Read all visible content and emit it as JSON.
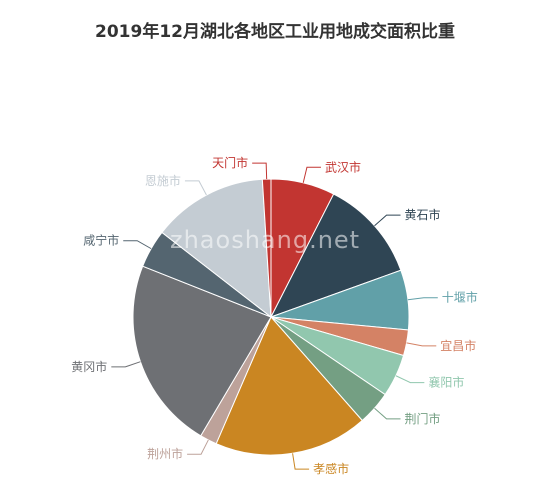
{
  "chart_data": {
    "type": "pie",
    "title": "2019年12月湖北各地区工业用地成交面积比重",
    "watermark": "zhaoshang.net",
    "slices": [
      {
        "name": "武汉市",
        "value": 7.5,
        "color": "#c23531"
      },
      {
        "name": "黄石市",
        "value": 12.0,
        "color": "#2f4554"
      },
      {
        "name": "十堰市",
        "value": 7.0,
        "color": "#61a0a8"
      },
      {
        "name": "宜昌市",
        "value": 3.0,
        "color": "#d48265"
      },
      {
        "name": "襄阳市",
        "value": 5.0,
        "color": "#91c7ae"
      },
      {
        "name": "荆门市",
        "value": 4.0,
        "color": "#749f83"
      },
      {
        "name": "孝感市",
        "value": 18.0,
        "color": "#ca8622"
      },
      {
        "name": "荆州市",
        "value": 2.0,
        "color": "#bda29a"
      },
      {
        "name": "黄冈市",
        "value": 22.5,
        "color": "#6e7074"
      },
      {
        "name": "咸宁市",
        "value": 4.5,
        "color": "#546570"
      },
      {
        "name": "恩施市",
        "value": 13.5,
        "color": "#c4ccd3"
      },
      {
        "name": "天门市",
        "value": 1.0,
        "color": "#c23531"
      }
    ]
  }
}
